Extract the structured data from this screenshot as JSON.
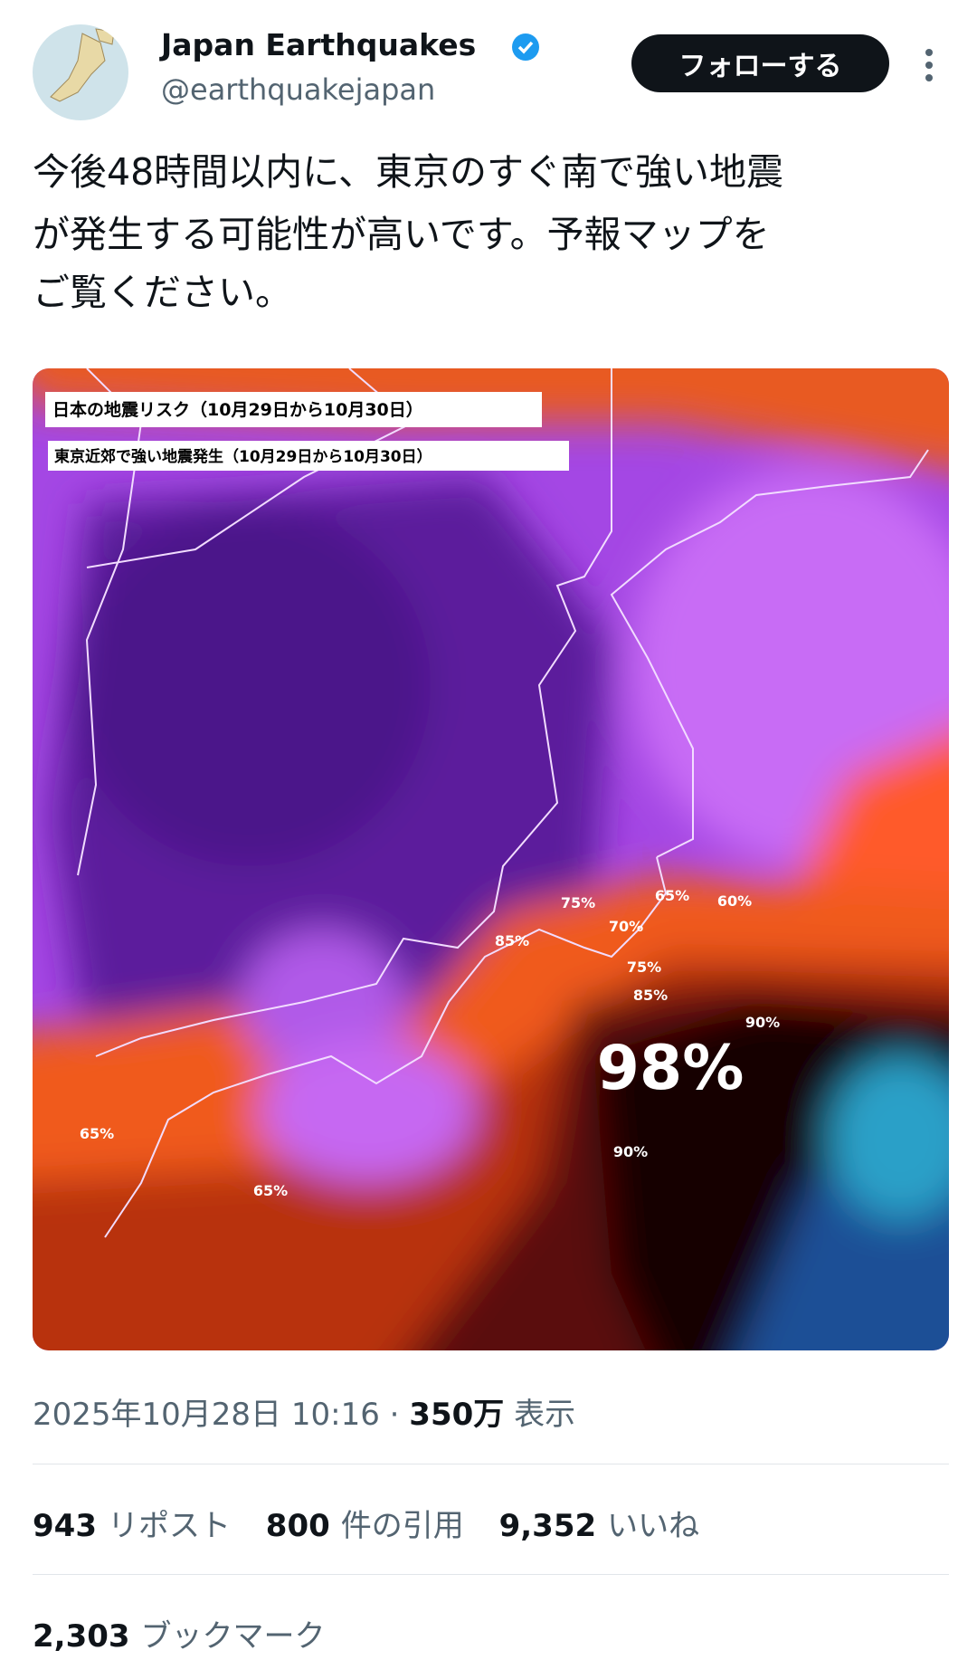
{
  "account": {
    "name": "Japan Earthquakes",
    "handle": "@earthquakejapan",
    "follow_button": "フォローする"
  },
  "post": {
    "text_lines": [
      "今後48時間以内に、東京のすぐ南で強い地震",
      "が発生する可能性が高いです。予報マップを",
      "ご覧ください。"
    ],
    "map": {
      "legend": [
        "日本の地震リスク（10月29日から10月30日）",
        "東京近郊で強い地震発生（10月29日から10月30日）"
      ],
      "labels": [
        "75%",
        "65%",
        "60%",
        "70%",
        "85%",
        "75%",
        "85%",
        "90%",
        "98%",
        "90%",
        "65%",
        "65%"
      ]
    },
    "timestamp": "2025年10月28日 10:16",
    "separator": "·",
    "views_count": "350万",
    "views_label": "表示"
  },
  "stats": {
    "reposts_count": "943",
    "reposts_label": "リポスト",
    "quotes_count": "800",
    "quotes_label": "件の引用",
    "likes_count": "9,352",
    "likes_label": "いいね",
    "bookmarks_count": "2,303",
    "bookmarks_label": "ブックマーク"
  }
}
